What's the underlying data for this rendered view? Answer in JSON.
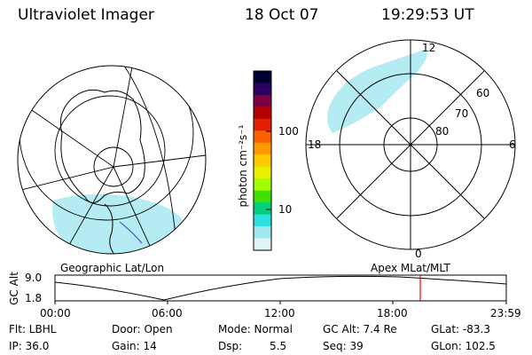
{
  "header": {
    "instrument": "Ultraviolet Imager",
    "date": "18 Oct 07",
    "time": "19:29:53 UT"
  },
  "colorbar": {
    "unit_label": "photon cm⁻²s⁻¹",
    "ticks": [
      "100",
      "10"
    ],
    "colors": [
      "#000033",
      "#2b0060",
      "#7a0040",
      "#b40000",
      "#e02000",
      "#ff6000",
      "#ff9900",
      "#ffc800",
      "#e8f000",
      "#a0ff00",
      "#40e000",
      "#00d080",
      "#30e0e0",
      "#a0e8f0",
      "#e0f4f8"
    ]
  },
  "maps": {
    "left_label": "Geographic Lat/Lon",
    "right_label": "Apex MLat/MLT",
    "polar_labels": {
      "top": "12",
      "bottom": "0",
      "left": "18",
      "right": "6",
      "ring_60": "60",
      "ring_70": "70",
      "ring_80": "80"
    },
    "aurora_color": "#a8e8f0"
  },
  "timeline": {
    "ylabel": "GC Alt",
    "yticks": [
      "9.0",
      "1.8"
    ],
    "xticks": [
      "00:00",
      "06:00",
      "12:00",
      "18:00",
      "23:59"
    ],
    "marker_color": "#ff0000"
  },
  "status": {
    "row1": {
      "flt": "Flt: LBHL",
      "door": "Door: Open",
      "mode": "Mode: Normal",
      "gcalt": "GC Alt: 7.4 Re",
      "glat": "GLat: -83.3"
    },
    "row2": {
      "ip": "IP: 36.0",
      "gain": "Gain: 14",
      "dsp_label": "Dsp:",
      "dsp_value": "5.5",
      "seq": "Seq: 39",
      "glon": "GLon: 102.5"
    }
  }
}
